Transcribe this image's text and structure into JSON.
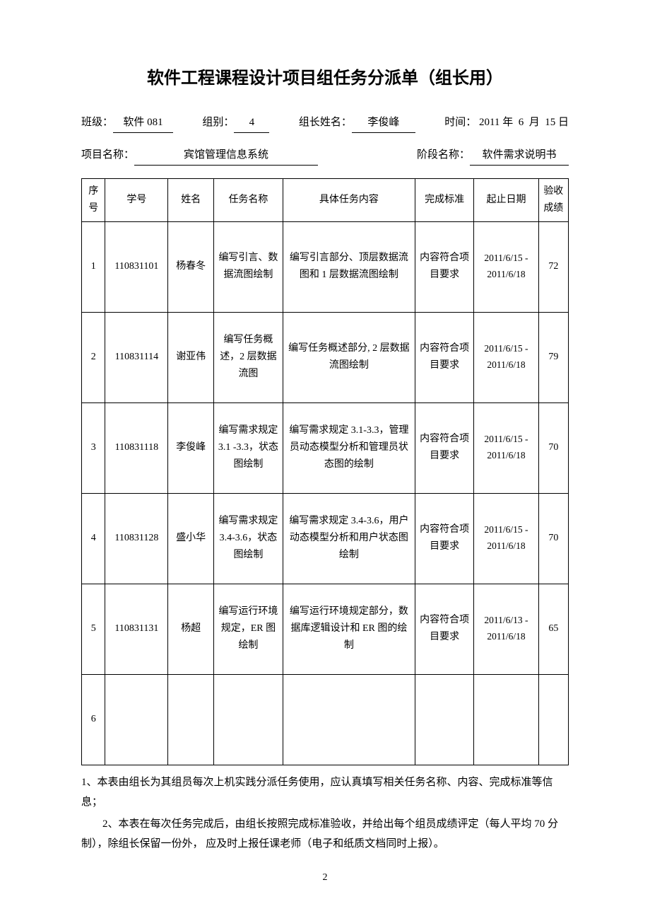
{
  "title": "软件工程课程设计项目组任务分派单（组长用）",
  "meta": {
    "class_label": "班级：",
    "class_value": "软件 081",
    "group_label": "组别：",
    "group_value": "4",
    "leader_label": "组长姓名：",
    "leader_value": "李俊峰",
    "time_label": "时间：",
    "time_year": "2011",
    "time_month": "6",
    "time_day": "15",
    "year_unit": "年",
    "month_unit": "月",
    "day_unit": "日",
    "project_label": "项目名称：",
    "project_value": "宾馆管理信息系统",
    "phase_label": "阶段名称：",
    "phase_value": "软件需求说明书"
  },
  "table": {
    "headers": {
      "idx": "序号",
      "sid": "学号",
      "name": "姓名",
      "task": "任务名称",
      "detail": "具体任务内容",
      "standard": "完成标准",
      "dates": "起止日期",
      "score": "验收成绩"
    },
    "rows": [
      {
        "idx": "1",
        "sid": "110831101",
        "name": "杨春冬",
        "task": "编写引言、数据流图绘制",
        "detail": "编写引言部分、顶层数据流图和 1 层数据流图绘制",
        "standard": "内容符合项目要求",
        "dates": "2011/6/15 - 2011/6/18",
        "score": "72"
      },
      {
        "idx": "2",
        "sid": "110831114",
        "name": "谢亚伟",
        "task": "编写任务概述，2 层数据流图",
        "detail": "编写任务概述部分, 2 层数据流图绘制",
        "standard": "内容符合项目要求",
        "dates": "2011/6/15 - 2011/6/18",
        "score": "79"
      },
      {
        "idx": "3",
        "sid": "110831118",
        "name": "李俊峰",
        "task": "编写需求规定 3.1 -3.3，状态图绘制",
        "detail": "编写需求规定 3.1-3.3，管理员动态模型分析和管理员状态图的绘制",
        "standard": "内容符合项目要求",
        "dates": "2011/6/15 - 2011/6/18",
        "score": "70"
      },
      {
        "idx": "4",
        "sid": "110831128",
        "name": "盛小华",
        "task": "编写需求规定 3.4-3.6，状态图绘制",
        "detail": "编写需求规定 3.4-3.6，用户动态模型分析和用户状态图绘制",
        "standard": "内容符合项目要求",
        "dates": "2011/6/15 - 2011/6/18",
        "score": "70"
      },
      {
        "idx": "5",
        "sid": "110831131",
        "name": "杨超",
        "task": "编写运行环境规定，ER 图绘制",
        "detail": "编写运行环境规定部分，数据库逻辑设计和 ER 图的绘制",
        "standard": "内容符合项目要求",
        "dates": "2011/6/13 - 2011/6/18",
        "score": "65"
      },
      {
        "idx": "6",
        "sid": "",
        "name": "",
        "task": "",
        "detail": "",
        "standard": "",
        "dates": "",
        "score": ""
      }
    ]
  },
  "notes": {
    "line1": "1、本表由组长为其组员每次上机实践分派任务使用，应认真填写相关任务名称、内容、完成标准等信息；",
    "line2": "2、本表在每次任务完成后，由组长按照完成标准验收，并给出每个组员成绩评定（每人平均 70 分制），除组长保留一份外， 应及时上报任课老师（电子和纸质文档同时上报）。"
  },
  "page_number": "2"
}
